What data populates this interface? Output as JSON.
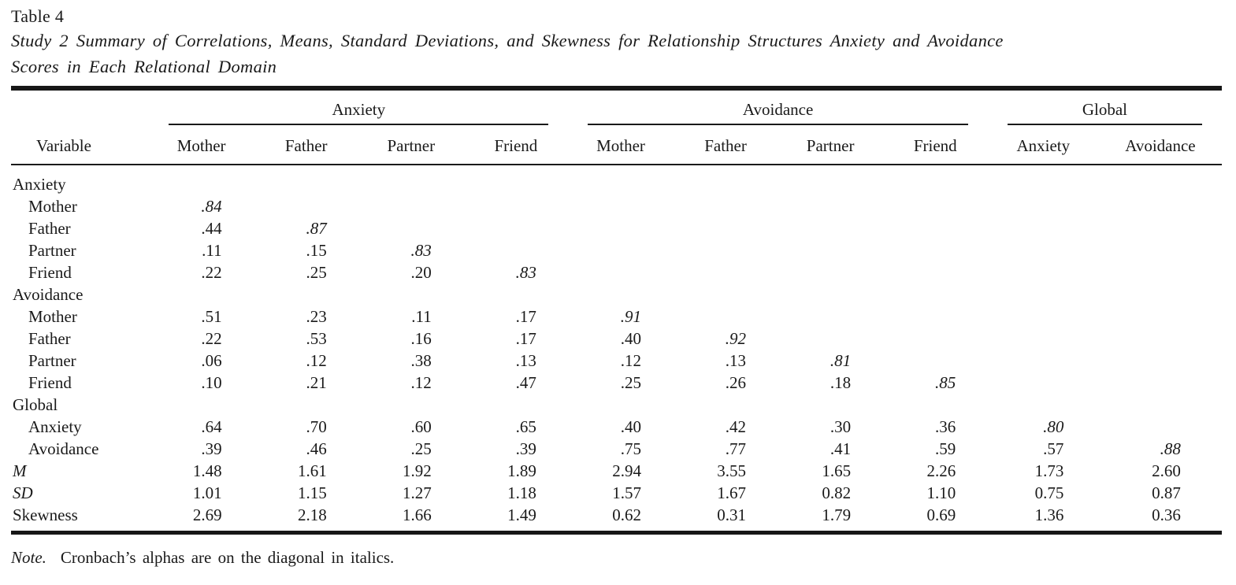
{
  "page": {
    "title": "Table 4"
  },
  "caption": {
    "line1": "Study 2 Summary of Correlations, Means, Standard Deviations, and Skewness for Relationship Structures Anxiety and Avoidance",
    "line2": "Scores in Each Relational Domain"
  },
  "table": {
    "stub_header": "Variable",
    "groups": [
      {
        "label": "Anxiety",
        "span": 4
      },
      {
        "label": "Avoidance",
        "span": 4
      },
      {
        "label": "Global",
        "span": 2
      }
    ],
    "columns": [
      "Mother",
      "Father",
      "Partner",
      "Friend",
      "Mother",
      "Father",
      "Partner",
      "Friend",
      "Anxiety",
      "Avoidance"
    ],
    "rows": [
      {
        "label": "Anxiety",
        "style": "section",
        "values": [
          "",
          "",
          "",
          "",
          "",
          "",
          "",
          "",
          "",
          ""
        ]
      },
      {
        "label": "Mother",
        "style": "indent",
        "values": [
          ".84",
          "",
          "",
          "",
          "",
          "",
          "",
          "",
          "",
          ""
        ],
        "italic_values": [
          0
        ]
      },
      {
        "label": "Father",
        "style": "indent",
        "values": [
          ".44",
          ".87",
          "",
          "",
          "",
          "",
          "",
          "",
          "",
          ""
        ],
        "italic_values": [
          1
        ]
      },
      {
        "label": "Partner",
        "style": "indent",
        "values": [
          ".11",
          ".15",
          ".83",
          "",
          "",
          "",
          "",
          "",
          "",
          ""
        ],
        "italic_values": [
          2
        ]
      },
      {
        "label": "Friend",
        "style": "indent",
        "values": [
          ".22",
          ".25",
          ".20",
          ".83",
          "",
          "",
          "",
          "",
          "",
          ""
        ],
        "italic_values": [
          3
        ]
      },
      {
        "label": "Avoidance",
        "style": "section",
        "values": [
          "",
          "",
          "",
          "",
          "",
          "",
          "",
          "",
          "",
          ""
        ]
      },
      {
        "label": "Mother",
        "style": "indent",
        "values": [
          ".51",
          ".23",
          ".11",
          ".17",
          ".91",
          "",
          "",
          "",
          "",
          ""
        ],
        "italic_values": [
          4
        ]
      },
      {
        "label": "Father",
        "style": "indent",
        "values": [
          ".22",
          ".53",
          ".16",
          ".17",
          ".40",
          ".92",
          "",
          "",
          "",
          ""
        ],
        "italic_values": [
          5
        ]
      },
      {
        "label": "Partner",
        "style": "indent",
        "values": [
          ".06",
          ".12",
          ".38",
          ".13",
          ".12",
          ".13",
          ".81",
          "",
          "",
          ""
        ],
        "italic_values": [
          6
        ]
      },
      {
        "label": "Friend",
        "style": "indent",
        "values": [
          ".10",
          ".21",
          ".12",
          ".47",
          ".25",
          ".26",
          ".18",
          ".85",
          "",
          ""
        ],
        "italic_values": [
          7
        ]
      },
      {
        "label": "Global",
        "style": "section",
        "values": [
          "",
          "",
          "",
          "",
          "",
          "",
          "",
          "",
          "",
          ""
        ]
      },
      {
        "label": "Anxiety",
        "style": "indent",
        "values": [
          ".64",
          ".70",
          ".60",
          ".65",
          ".40",
          ".42",
          ".30",
          ".36",
          ".80",
          ""
        ],
        "italic_values": [
          8
        ]
      },
      {
        "label": "Avoidance",
        "style": "indent",
        "values": [
          ".39",
          ".46",
          ".25",
          ".39",
          ".75",
          ".77",
          ".41",
          ".59",
          ".57",
          ".88"
        ],
        "italic_values": [
          9
        ]
      },
      {
        "label": "M",
        "style": "stat-italic",
        "values": [
          "1.48",
          "1.61",
          "1.92",
          "1.89",
          "2.94",
          "3.55",
          "1.65",
          "2.26",
          "1.73",
          "2.60"
        ]
      },
      {
        "label": "SD",
        "style": "stat-italic",
        "values": [
          "1.01",
          "1.15",
          "1.27",
          "1.18",
          "1.57",
          "1.67",
          "0.82",
          "1.10",
          "0.75",
          "0.87"
        ]
      },
      {
        "label": "Skewness",
        "style": "stat",
        "values": [
          "2.69",
          "2.18",
          "1.66",
          "1.49",
          "0.62",
          "0.31",
          "1.79",
          "0.69",
          "1.36",
          "0.36"
        ]
      }
    ]
  },
  "note": {
    "label": "Note.",
    "text": "Cronbach’s alphas are on the diagonal in italics."
  }
}
